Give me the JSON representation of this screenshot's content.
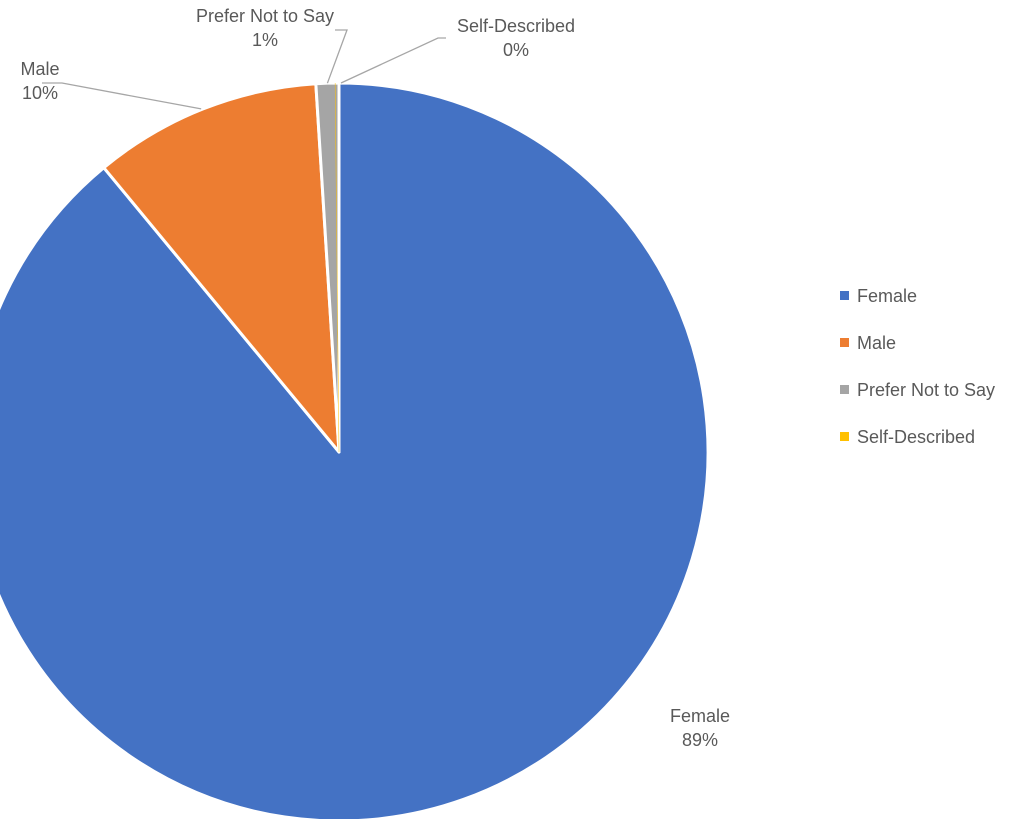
{
  "chart_data": {
    "type": "pie",
    "title": "",
    "slices": [
      {
        "name": "Female",
        "value": 89,
        "label": "89%",
        "color": "#4472C4"
      },
      {
        "name": "Male",
        "value": 10,
        "label": "10%",
        "color": "#ED7D31"
      },
      {
        "name": "Prefer Not to Say",
        "value": 1,
        "label": "1%",
        "color": "#A5A5A5"
      },
      {
        "name": "Self-Described",
        "value": 0,
        "label": "0%",
        "color": "#FFC000"
      }
    ],
    "legend_position": "right"
  }
}
